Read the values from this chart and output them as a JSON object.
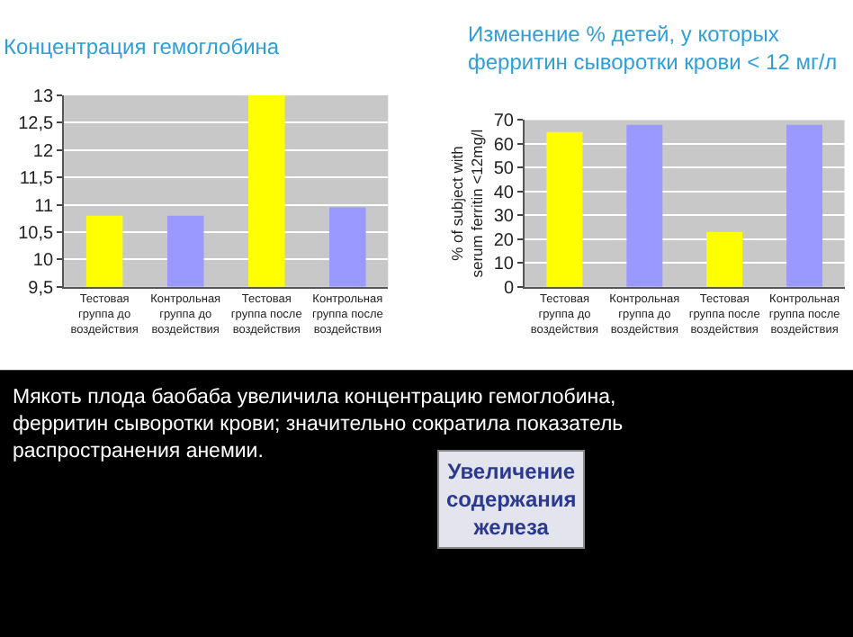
{
  "chart_data": [
    {
      "type": "bar",
      "title": "Концентрация гемоглобина",
      "categories": [
        "Тестовая группа до воздействия",
        "Контрольная группа до воздействия",
        "Тестовая группа после воздействия",
        "Контрольная группа после воздействия"
      ],
      "values": [
        10.8,
        10.8,
        13.0,
        10.95
      ],
      "colors": [
        "#ffff00",
        "#9999ff",
        "#ffff00",
        "#9999ff"
      ],
      "ylim": [
        9.5,
        13
      ],
      "yticks": [
        {
          "value": 9.5,
          "label": "9,5"
        },
        10,
        {
          "value": 10.5,
          "label": "10,5"
        },
        11,
        {
          "value": 11.5,
          "label": "11,5"
        },
        12,
        {
          "value": 12.5,
          "label": "12,5"
        },
        13
      ],
      "grid": "y"
    },
    {
      "type": "bar",
      "title": "Изменение % детей, у которых\nферритин сыворотки крови < 12 мг/л",
      "ylabel": "% of subject with\nserum ferritin <12mg/l",
      "categories": [
        "Тестовая группа до воздействия",
        "Контрольная группа до воздействия",
        "Тестовая группа после воздействия",
        "Контрольная группа после воздействия"
      ],
      "values": [
        65,
        68,
        23,
        68
      ],
      "colors": [
        "#ffff00",
        "#9999ff",
        "#ffff00",
        "#9999ff"
      ],
      "ylim": [
        0,
        70
      ],
      "yticks": [
        0,
        10,
        20,
        30,
        40,
        50,
        60,
        70
      ],
      "grid": "y"
    },
    {
      "type": "other",
      "annotations": [
        "Мякоть плода баобаба увеличила концентрацию гемоглобина,\nферритин сыворотки крови; значительно сократила показатель\nраспространения анемии.",
        "Увеличение\nсодержания\nжелеза"
      ]
    }
  ]
}
